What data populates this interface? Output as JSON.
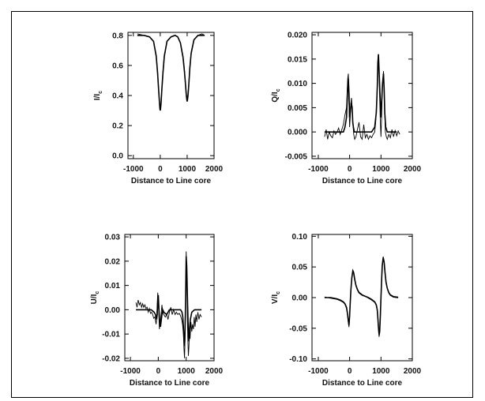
{
  "chart_data": [
    {
      "id": "I",
      "type": "line",
      "xlabel": "Distance to Line core",
      "ylabel": "I/I",
      "ylabel_sub": "c",
      "xlim": [
        -1200,
        2000
      ],
      "ylim": [
        -0.02,
        0.82
      ],
      "xticks": [
        -1000,
        0,
        1000,
        2000
      ],
      "yticks": [
        0.0,
        0.2,
        0.4,
        0.6,
        0.8
      ],
      "ytick_labels": [
        "0.0",
        "0.2",
        "0.4",
        "0.6",
        "0.8"
      ],
      "series": [
        {
          "x": [
            -850,
            -600,
            -400,
            -250,
            -150,
            -100,
            -60,
            -30,
            -10,
            0,
            10,
            30,
            60,
            100,
            150,
            250,
            400,
            550,
            650,
            750,
            850,
            900,
            940,
            970,
            990,
            1000,
            1010,
            1030,
            1060,
            1100,
            1150,
            1250,
            1400,
            1550,
            1650
          ],
          "values": [
            0.8,
            0.8,
            0.79,
            0.76,
            0.66,
            0.55,
            0.44,
            0.35,
            0.31,
            0.3,
            0.31,
            0.35,
            0.44,
            0.55,
            0.66,
            0.76,
            0.79,
            0.8,
            0.79,
            0.75,
            0.65,
            0.56,
            0.47,
            0.4,
            0.37,
            0.36,
            0.37,
            0.4,
            0.47,
            0.58,
            0.68,
            0.77,
            0.8,
            0.8,
            0.8
          ]
        },
        {
          "x": [
            -850,
            -600,
            -400,
            -250,
            -150,
            -100,
            -60,
            -30,
            -10,
            0,
            10,
            30,
            60,
            100,
            150,
            250,
            400,
            550,
            650,
            750,
            850,
            900,
            940,
            970,
            990,
            1000,
            1010,
            1030,
            1060,
            1100,
            1150,
            1250,
            1400,
            1550,
            1650
          ],
          "values": [
            0.81,
            0.8,
            0.79,
            0.76,
            0.67,
            0.56,
            0.45,
            0.36,
            0.32,
            0.31,
            0.32,
            0.36,
            0.45,
            0.56,
            0.67,
            0.76,
            0.79,
            0.8,
            0.79,
            0.75,
            0.66,
            0.57,
            0.48,
            0.41,
            0.38,
            0.37,
            0.38,
            0.41,
            0.48,
            0.59,
            0.69,
            0.77,
            0.8,
            0.81,
            0.8
          ]
        }
      ]
    },
    {
      "id": "Q",
      "type": "line",
      "xlabel": "Distance to Line core",
      "ylabel": "Q/I",
      "ylabel_sub": "c",
      "xlim": [
        -1200,
        2000
      ],
      "ylim": [
        -0.0055,
        0.0205
      ],
      "xticks": [
        -1000,
        0,
        1000,
        2000
      ],
      "yticks": [
        -0.005,
        0.0,
        0.005,
        0.01,
        0.015,
        0.02
      ],
      "ytick_labels": [
        "-0.005",
        "0.000",
        "0.005",
        "0.010",
        "0.015",
        "0.020"
      ],
      "series": [
        {
          "x": [
            -800,
            -600,
            -400,
            -300,
            -200,
            -150,
            -100,
            -80,
            -60,
            -40,
            -20,
            0,
            20,
            50,
            80,
            100,
            120,
            150,
            200,
            300,
            400,
            500,
            600,
            700,
            800,
            850,
            880,
            900,
            920,
            950,
            980,
            1000,
            1020,
            1050,
            1080,
            1100,
            1120,
            1150,
            1200,
            1300,
            1400,
            1500
          ],
          "values": [
            0,
            0,
            0,
            0,
            0,
            0.001,
            0.003,
            0.006,
            0.009,
            0.011,
            0.008,
            0.003,
            0.004,
            0.006,
            0.005,
            0.002,
            0.001,
            0,
            0,
            0,
            0,
            0,
            0,
            0,
            0.001,
            0.004,
            0.009,
            0.014,
            0.016,
            0.011,
            0.006,
            0.003,
            0.006,
            0.01,
            0.012,
            0.009,
            0.004,
            0.001,
            0,
            0,
            0,
            0
          ]
        },
        {
          "x": [
            -800,
            -750,
            -700,
            -650,
            -600,
            -550,
            -500,
            -450,
            -400,
            -350,
            -300,
            -250,
            -200,
            -150,
            -100,
            -80,
            -60,
            -40,
            -20,
            0,
            20,
            40,
            60,
            80,
            100,
            130,
            160,
            200,
            250,
            300,
            350,
            400,
            450,
            500,
            550,
            600,
            650,
            700,
            750,
            800,
            830,
            860,
            880,
            900,
            920,
            940,
            960,
            980,
            1000,
            1020,
            1040,
            1060,
            1080,
            1100,
            1120,
            1140,
            1170,
            1200,
            1250,
            1300,
            1350,
            1400,
            1450,
            1500,
            1550,
            1600
          ],
          "values": [
            -0.001,
            0.0005,
            -0.0015,
            0.0,
            -0.0008,
            -0.0012,
            0.0002,
            -0.0005,
            0.0,
            0.0008,
            -0.0005,
            0.0005,
            0.0015,
            0.0035,
            0.005,
            0.008,
            0.011,
            0.012,
            0.006,
            0.001,
            0.003,
            0.006,
            0.007,
            0.005,
            0.002,
            -0.0005,
            -0.0015,
            -0.001,
            0.0005,
            0.002,
            -0.001,
            -0.0015,
            0.0015,
            -0.0012,
            -0.0005,
            -0.0015,
            -0.0008,
            -0.0012,
            -0.0005,
            0.0,
            0.002,
            0.006,
            0.01,
            0.0145,
            0.0155,
            0.012,
            0.007,
            0.002,
            -0.001,
            0.003,
            0.008,
            0.011,
            0.0125,
            0.009,
            0.004,
            0.0,
            -0.001,
            -0.0015,
            -0.0005,
            -0.0012,
            0.0005,
            -0.001,
            0.0003,
            -0.0008,
            0.0002,
            -0.0005
          ]
        }
      ]
    },
    {
      "id": "U",
      "type": "line",
      "xlabel": "Distance to Line core",
      "ylabel": "U/I",
      "ylabel_sub": "c",
      "xlim": [
        -1200,
        2000
      ],
      "ylim": [
        -0.021,
        0.031
      ],
      "xticks": [
        -1000,
        0,
        1000,
        2000
      ],
      "yticks": [
        -0.02,
        -0.01,
        0.0,
        0.01,
        0.02,
        0.03
      ],
      "ytick_labels": [
        "-0.02",
        "-0.01",
        "0.00",
        "0.01",
        "0.02",
        "0.03"
      ],
      "series": [
        {
          "x": [
            -800,
            -600,
            -400,
            -250,
            -150,
            -100,
            -60,
            -40,
            -20,
            0,
            20,
            50,
            80,
            120,
            160,
            200,
            300,
            400,
            500,
            600,
            700,
            800,
            850,
            880,
            900,
            920,
            940,
            960,
            980,
            1000,
            1020,
            1050,
            1080,
            1100,
            1120,
            1150,
            1200,
            1300,
            1400,
            1550
          ],
          "values": [
            0,
            0,
            0,
            0,
            -0.001,
            -0.002,
            -0.004,
            -0.002,
            0.003,
            0.006,
            0.001,
            -0.005,
            -0.007,
            -0.003,
            0,
            -0.001,
            -0.002,
            0,
            0,
            0,
            0,
            0,
            -0.001,
            -0.003,
            -0.007,
            -0.012,
            -0.015,
            -0.008,
            0.005,
            0.022,
            0.018,
            0.002,
            -0.01,
            -0.013,
            -0.008,
            -0.004,
            -0.001,
            0,
            0,
            0
          ]
        },
        {
          "x": [
            -800,
            -760,
            -720,
            -680,
            -640,
            -600,
            -560,
            -520,
            -480,
            -440,
            -400,
            -360,
            -320,
            -280,
            -240,
            -200,
            -160,
            -120,
            -80,
            -60,
            -40,
            -20,
            0,
            20,
            40,
            60,
            80,
            100,
            130,
            160,
            200,
            250,
            300,
            350,
            400,
            450,
            500,
            550,
            600,
            650,
            700,
            750,
            800,
            840,
            870,
            900,
            920,
            940,
            960,
            980,
            1000,
            1020,
            1040,
            1060,
            1080,
            1100,
            1120,
            1140,
            1170,
            1200,
            1230,
            1260,
            1290,
            1320,
            1350,
            1380,
            1420,
            1460,
            1500,
            1550
          ],
          "values": [
            0.003,
            0.001,
            0.004,
            0.002,
            0.003,
            0.001,
            0.0025,
            0.001,
            0.002,
            0.0005,
            0.001,
            -0.001,
            0.0005,
            -0.0015,
            -0.001,
            -0.002,
            -0.0035,
            -0.003,
            -0.006,
            -0.004,
            0.002,
            0.007,
            0.004,
            -0.002,
            -0.008,
            -0.006,
            -0.004,
            -0.002,
            0.002,
            -0.001,
            -0.002,
            -0.003,
            -0.002,
            -0.004,
            -0.001,
            0.001,
            -0.002,
            0.0,
            -0.002,
            -0.001,
            -0.002,
            -0.0015,
            -0.0025,
            -0.004,
            -0.006,
            -0.01,
            -0.016,
            -0.02,
            -0.012,
            0.006,
            0.024,
            0.016,
            -0.002,
            -0.012,
            -0.019,
            -0.015,
            -0.008,
            -0.012,
            -0.005,
            -0.009,
            -0.006,
            -0.008,
            -0.003,
            -0.007,
            -0.002,
            -0.005,
            -0.001,
            -0.004,
            -0.002,
            -0.003
          ]
        }
      ]
    },
    {
      "id": "V",
      "type": "line",
      "xlabel": "Distance to Line core",
      "ylabel": "V/I",
      "ylabel_sub": "c",
      "xlim": [
        -1200,
        2000
      ],
      "ylim": [
        -0.103,
        0.103
      ],
      "xticks": [
        -1000,
        0,
        1000,
        2000
      ],
      "yticks": [
        -0.1,
        -0.05,
        0.0,
        0.05,
        0.1
      ],
      "ytick_labels": [
        "-0.10",
        "-0.05",
        "0.00",
        "0.05",
        "0.10"
      ],
      "series": [
        {
          "x": [
            -800,
            -600,
            -400,
            -300,
            -200,
            -150,
            -100,
            -70,
            -40,
            -20,
            0,
            20,
            40,
            70,
            100,
            130,
            160,
            200,
            250,
            300,
            400,
            500,
            600,
            700,
            800,
            850,
            880,
            900,
            920,
            940,
            960,
            980,
            1000,
            1020,
            1040,
            1070,
            1100,
            1130,
            1160,
            1200,
            1250,
            1300,
            1400,
            1550
          ],
          "values": [
            0,
            0,
            -0.002,
            -0.004,
            -0.007,
            -0.01,
            -0.016,
            -0.025,
            -0.038,
            -0.045,
            -0.03,
            -0.008,
            0.012,
            0.032,
            0.043,
            0.04,
            0.03,
            0.02,
            0.013,
            0.008,
            0.004,
            0.002,
            0,
            -0.003,
            -0.007,
            -0.012,
            -0.02,
            -0.032,
            -0.048,
            -0.06,
            -0.055,
            -0.03,
            0,
            0.028,
            0.052,
            0.065,
            0.058,
            0.04,
            0.025,
            0.015,
            0.008,
            0.004,
            0.001,
            0
          ]
        },
        {
          "x": [
            -800,
            -600,
            -400,
            -300,
            -200,
            -150,
            -100,
            -70,
            -40,
            -20,
            0,
            20,
            40,
            70,
            100,
            130,
            160,
            200,
            250,
            300,
            400,
            500,
            600,
            700,
            800,
            850,
            880,
            900,
            920,
            940,
            960,
            980,
            1000,
            1020,
            1040,
            1070,
            1100,
            1130,
            1160,
            1200,
            1250,
            1300,
            1400,
            1550
          ],
          "values": [
            0.001,
            -0.001,
            -0.003,
            -0.005,
            -0.008,
            -0.011,
            -0.018,
            -0.027,
            -0.041,
            -0.048,
            -0.033,
            -0.01,
            0.011,
            0.031,
            0.045,
            0.042,
            0.032,
            0.021,
            0.014,
            0.009,
            0.005,
            0.002,
            -0.001,
            -0.004,
            -0.008,
            -0.013,
            -0.022,
            -0.034,
            -0.051,
            -0.064,
            -0.058,
            -0.032,
            -0.002,
            0.026,
            0.05,
            0.067,
            0.06,
            0.042,
            0.027,
            0.016,
            0.009,
            0.005,
            0.002,
            0.001
          ]
        }
      ]
    }
  ]
}
